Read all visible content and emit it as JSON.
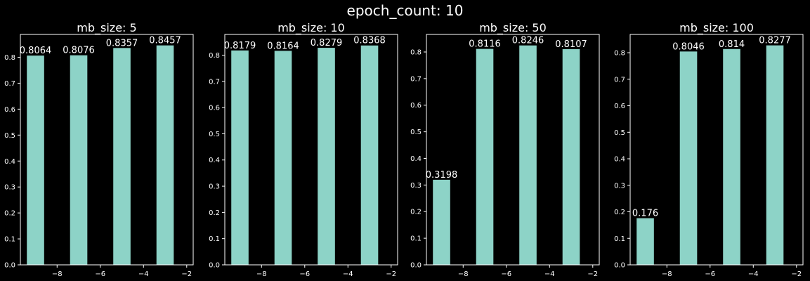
{
  "suptitle": "epoch_count: 10",
  "colors": {
    "background": "#000000",
    "bar": "#8dd3c7",
    "axis": "#ffffff",
    "text": "#ffffff"
  },
  "chart_data": [
    {
      "type": "bar",
      "title": "mb_size: 5",
      "x": [
        -9,
        -7,
        -5,
        -3
      ],
      "values": [
        0.8064,
        0.8076,
        0.8357,
        0.8457
      ],
      "data_labels": [
        "0.8064",
        "0.8076",
        "0.8357",
        "0.8457"
      ],
      "bar_width": 0.8,
      "xlim": [
        -9.7,
        -1.7
      ],
      "ylim": [
        0,
        0.888
      ],
      "xticks": [
        -8,
        -6,
        -4,
        -2
      ],
      "yticks": [
        0.0,
        0.1,
        0.2,
        0.3,
        0.4,
        0.5,
        0.6,
        0.7,
        0.8
      ],
      "ytick_labels": [
        "0.0",
        "0.1",
        "0.2",
        "0.3",
        "0.4",
        "0.5",
        "0.6",
        "0.7",
        "0.8"
      ],
      "xtick_labels": [
        "−8",
        "−6",
        "−4",
        "−2"
      ],
      "xlabel": "",
      "ylabel": "",
      "grid": false
    },
    {
      "type": "bar",
      "title": "mb_size: 10",
      "x": [
        -9,
        -7,
        -5,
        -3
      ],
      "values": [
        0.8179,
        0.8164,
        0.8279,
        0.8368
      ],
      "data_labels": [
        "0.8179",
        "0.8164",
        "0.8279",
        "0.8368"
      ],
      "bar_width": 0.8,
      "xlim": [
        -9.7,
        -1.7
      ],
      "ylim": [
        0,
        0.879
      ],
      "xticks": [
        -8,
        -6,
        -4,
        -2
      ],
      "yticks": [
        0.0,
        0.1,
        0.2,
        0.3,
        0.4,
        0.5,
        0.6,
        0.7,
        0.8
      ],
      "ytick_labels": [
        "0.0",
        "0.1",
        "0.2",
        "0.3",
        "0.4",
        "0.5",
        "0.6",
        "0.7",
        "0.8"
      ],
      "xtick_labels": [
        "−8",
        "−6",
        "−4",
        "−2"
      ],
      "xlabel": "",
      "ylabel": "",
      "grid": false
    },
    {
      "type": "bar",
      "title": "mb_size: 50",
      "x": [
        -9,
        -7,
        -5,
        -3
      ],
      "values": [
        0.3198,
        0.8116,
        0.8246,
        0.8107
      ],
      "data_labels": [
        "0.3198",
        "0.8116",
        "0.8246",
        "0.8107"
      ],
      "bar_width": 0.8,
      "xlim": [
        -9.7,
        -1.7
      ],
      "ylim": [
        0,
        0.866
      ],
      "xticks": [
        -8,
        -6,
        -4,
        -2
      ],
      "yticks": [
        0.0,
        0.1,
        0.2,
        0.3,
        0.4,
        0.5,
        0.6,
        0.7,
        0.8
      ],
      "ytick_labels": [
        "0.0",
        "0.1",
        "0.2",
        "0.3",
        "0.4",
        "0.5",
        "0.6",
        "0.7",
        "0.8"
      ],
      "xtick_labels": [
        "−8",
        "−6",
        "−4",
        "−2"
      ],
      "xlabel": "",
      "ylabel": "",
      "grid": false
    },
    {
      "type": "bar",
      "title": "mb_size: 100",
      "x": [
        -9,
        -7,
        -5,
        -3
      ],
      "values": [
        0.176,
        0.8046,
        0.814,
        0.8277
      ],
      "data_labels": [
        "0.176",
        "0.8046",
        "0.814",
        "0.8277"
      ],
      "bar_width": 0.8,
      "xlim": [
        -9.7,
        -1.7
      ],
      "ylim": [
        0,
        0.869
      ],
      "xticks": [
        -8,
        -6,
        -4,
        -2
      ],
      "yticks": [
        0.0,
        0.1,
        0.2,
        0.3,
        0.4,
        0.5,
        0.6,
        0.7,
        0.8
      ],
      "ytick_labels": [
        "0.0",
        "0.1",
        "0.2",
        "0.3",
        "0.4",
        "0.5",
        "0.6",
        "0.7",
        "0.8"
      ],
      "xtick_labels": [
        "−8",
        "−6",
        "−4",
        "−2"
      ],
      "xlabel": "",
      "ylabel": "",
      "grid": false
    }
  ]
}
